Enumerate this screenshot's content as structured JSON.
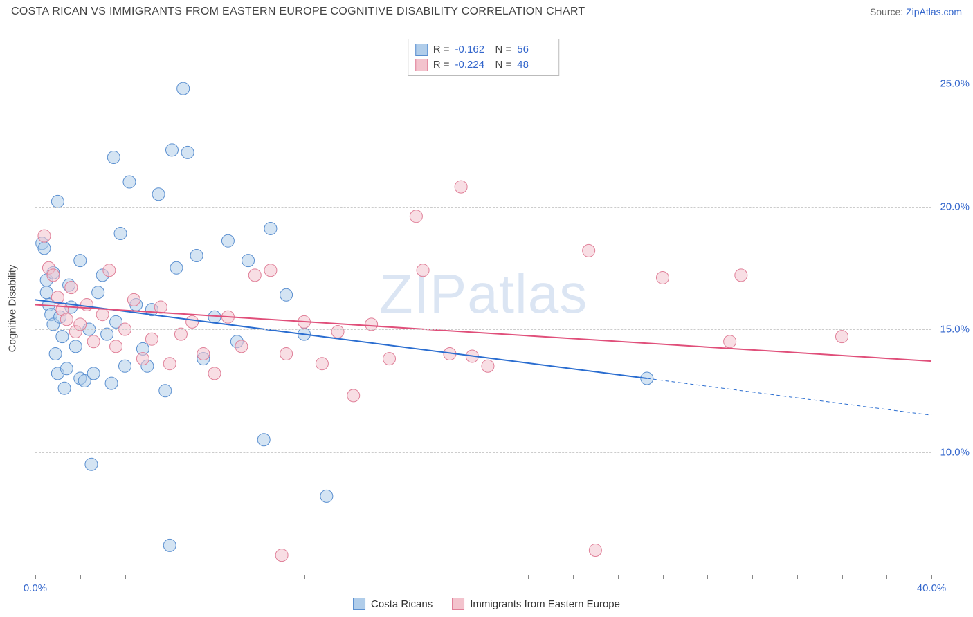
{
  "title": "COSTA RICAN VS IMMIGRANTS FROM EASTERN EUROPE COGNITIVE DISABILITY CORRELATION CHART",
  "source_prefix": "Source: ",
  "source_name": "ZipAtlas.com",
  "ylabel": "Cognitive Disability",
  "watermark": "ZIPatlas",
  "chart": {
    "type": "scatter",
    "xlim": [
      0,
      40
    ],
    "ylim": [
      5,
      27
    ],
    "xtick_labels": [
      "0.0%",
      "40.0%"
    ],
    "xtick_positions": [
      0,
      40
    ],
    "xtick_marks": [
      0,
      2,
      4,
      6,
      8,
      10,
      12,
      14,
      16,
      18,
      20,
      22,
      24,
      26,
      28,
      30,
      32,
      34,
      36,
      38,
      40
    ],
    "ytick_labels": [
      "10.0%",
      "15.0%",
      "20.0%",
      "25.0%"
    ],
    "ytick_positions": [
      10,
      15,
      20,
      25
    ],
    "background_color": "#ffffff",
    "grid_color": "#cccccc",
    "axis_color": "#888888",
    "title_fontsize": 16,
    "label_fontsize": 15,
    "tick_color": "#3366cc"
  },
  "series": [
    {
      "name": "Costa Ricans",
      "fill": "#b0cdea",
      "stroke": "#5a8fd0",
      "fill_opacity": 0.55,
      "marker_r": 9,
      "trend": {
        "x1": 0,
        "y1": 16.2,
        "x2": 27.3,
        "y2": 13.0,
        "x2_dash": 40,
        "y2_dash": 11.5,
        "color": "#2a6dd0",
        "width": 2
      },
      "R": "-0.162",
      "N": "56",
      "points": [
        [
          0.3,
          18.5
        ],
        [
          0.4,
          18.3
        ],
        [
          0.5,
          17.0
        ],
        [
          0.5,
          16.5
        ],
        [
          0.6,
          16.0
        ],
        [
          0.7,
          15.6
        ],
        [
          0.8,
          15.2
        ],
        [
          0.8,
          17.3
        ],
        [
          0.9,
          14.0
        ],
        [
          1.0,
          20.2
        ],
        [
          1.0,
          13.2
        ],
        [
          1.1,
          15.5
        ],
        [
          1.2,
          14.7
        ],
        [
          1.3,
          12.6
        ],
        [
          1.4,
          13.4
        ],
        [
          1.5,
          16.8
        ],
        [
          1.6,
          15.9
        ],
        [
          1.8,
          14.3
        ],
        [
          2.0,
          17.8
        ],
        [
          2.0,
          13.0
        ],
        [
          2.2,
          12.9
        ],
        [
          2.4,
          15.0
        ],
        [
          2.5,
          9.5
        ],
        [
          2.6,
          13.2
        ],
        [
          2.8,
          16.5
        ],
        [
          3.0,
          17.2
        ],
        [
          3.2,
          14.8
        ],
        [
          3.4,
          12.8
        ],
        [
          3.5,
          22.0
        ],
        [
          3.6,
          15.3
        ],
        [
          3.8,
          18.9
        ],
        [
          4.0,
          13.5
        ],
        [
          4.2,
          21.0
        ],
        [
          4.5,
          16.0
        ],
        [
          4.8,
          14.2
        ],
        [
          5.0,
          13.5
        ],
        [
          5.2,
          15.8
        ],
        [
          5.5,
          20.5
        ],
        [
          5.8,
          12.5
        ],
        [
          6.1,
          22.3
        ],
        [
          6.3,
          17.5
        ],
        [
          6.6,
          24.8
        ],
        [
          6.8,
          22.2
        ],
        [
          6.0,
          6.2
        ],
        [
          7.2,
          18.0
        ],
        [
          7.5,
          13.8
        ],
        [
          8.0,
          15.5
        ],
        [
          8.6,
          18.6
        ],
        [
          9.0,
          14.5
        ],
        [
          9.5,
          17.8
        ],
        [
          10.2,
          10.5
        ],
        [
          10.5,
          19.1
        ],
        [
          11.2,
          16.4
        ],
        [
          12.0,
          14.8
        ],
        [
          13.0,
          8.2
        ],
        [
          27.3,
          13.0
        ]
      ]
    },
    {
      "name": "Immigrants from Eastern Europe",
      "fill": "#f3c3cd",
      "stroke": "#e07f98",
      "fill_opacity": 0.55,
      "marker_r": 9,
      "trend": {
        "x1": 0,
        "y1": 16.0,
        "x2": 40,
        "y2": 13.7,
        "color": "#e04f7a",
        "width": 2
      },
      "R": "-0.224",
      "N": "48",
      "points": [
        [
          0.4,
          18.8
        ],
        [
          0.6,
          17.5
        ],
        [
          0.8,
          17.2
        ],
        [
          1.0,
          16.3
        ],
        [
          1.2,
          15.8
        ],
        [
          1.4,
          15.4
        ],
        [
          1.6,
          16.7
        ],
        [
          1.8,
          14.9
        ],
        [
          2.0,
          15.2
        ],
        [
          2.3,
          16.0
        ],
        [
          2.6,
          14.5
        ],
        [
          3.0,
          15.6
        ],
        [
          3.3,
          17.4
        ],
        [
          3.6,
          14.3
        ],
        [
          4.0,
          15.0
        ],
        [
          4.4,
          16.2
        ],
        [
          4.8,
          13.8
        ],
        [
          5.2,
          14.6
        ],
        [
          5.6,
          15.9
        ],
        [
          6.0,
          13.6
        ],
        [
          6.5,
          14.8
        ],
        [
          7.0,
          15.3
        ],
        [
          7.5,
          14.0
        ],
        [
          8.0,
          13.2
        ],
        [
          8.6,
          15.5
        ],
        [
          9.2,
          14.3
        ],
        [
          9.8,
          17.2
        ],
        [
          10.5,
          17.4
        ],
        [
          11.2,
          14.0
        ],
        [
          11.0,
          5.8
        ],
        [
          12.0,
          15.3
        ],
        [
          12.8,
          13.6
        ],
        [
          13.5,
          14.9
        ],
        [
          14.2,
          12.3
        ],
        [
          15.0,
          15.2
        ],
        [
          15.8,
          13.8
        ],
        [
          17.0,
          19.6
        ],
        [
          17.3,
          17.4
        ],
        [
          18.5,
          14.0
        ],
        [
          19.0,
          20.8
        ],
        [
          19.5,
          13.9
        ],
        [
          20.2,
          13.5
        ],
        [
          24.7,
          18.2
        ],
        [
          25.0,
          6.0
        ],
        [
          28.0,
          17.1
        ],
        [
          31.0,
          14.5
        ],
        [
          31.5,
          17.2
        ],
        [
          36.0,
          14.7
        ]
      ]
    }
  ],
  "top_legend_labels": {
    "R": "R =",
    "N": "N ="
  },
  "bottom_legend": [
    {
      "label": "Costa Ricans",
      "fill": "#b0cdea",
      "stroke": "#5a8fd0"
    },
    {
      "label": "Immigrants from Eastern Europe",
      "fill": "#f3c3cd",
      "stroke": "#e07f98"
    }
  ]
}
